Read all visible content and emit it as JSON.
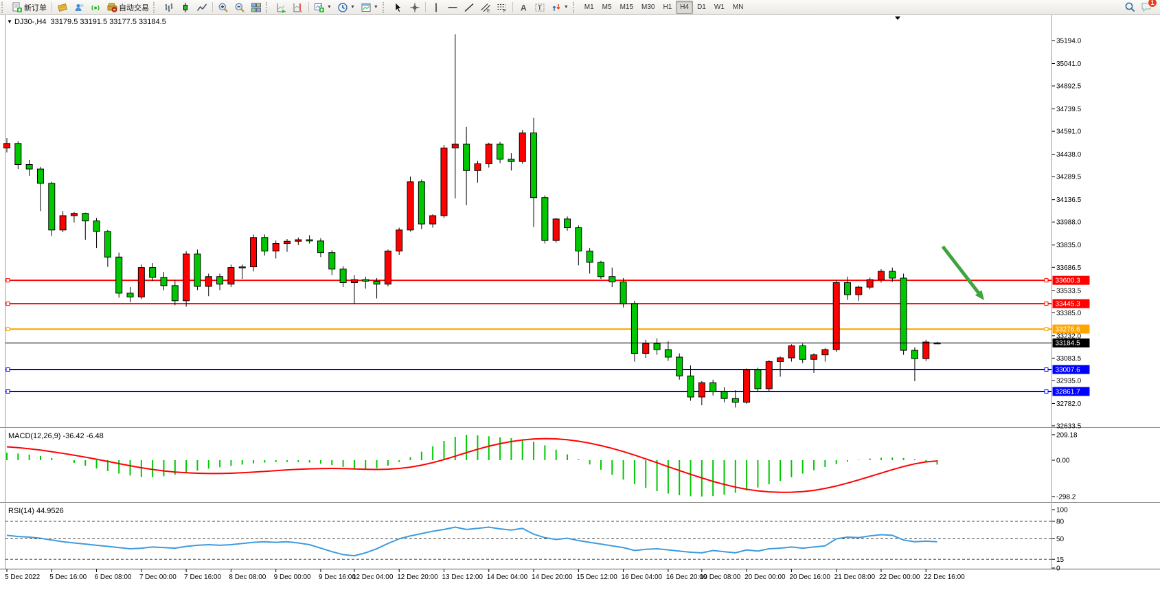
{
  "toolbar": {
    "new_order_label": "新订单",
    "autotrade_label": "自动交易",
    "timeframes": [
      "M1",
      "M5",
      "M15",
      "M30",
      "H1",
      "H4",
      "D1",
      "W1",
      "MN"
    ],
    "active_timeframe": "H4",
    "notification_count": "1"
  },
  "chart": {
    "title_line": "DJ30-,H4  33179.5 33191.5 33177.5 33184.5",
    "symbol": "DJ30-",
    "timeframe": "H4",
    "open": "33179.5",
    "high": "33191.5",
    "low": "33177.5",
    "close": "33184.5",
    "macd_label": "MACD(12,26,9) -36.42 -6.48",
    "rsi_label": "RSI(14) 44.9526"
  },
  "chart_data": [
    {
      "type": "candlestick",
      "symbol": "DJ30-",
      "timeframe": "H4",
      "up_color": "#FF0000",
      "down_color": "#00C800",
      "ylim": [
        32633.5,
        35194.0
      ],
      "y_ticks": [
        35194.0,
        35041.0,
        34892.5,
        34739.5,
        34591.0,
        34438.0,
        34289.5,
        34136.5,
        33988.0,
        33835.0,
        33686.5,
        33533.5,
        33385.0,
        33232.0,
        33083.5,
        32935.0,
        32782.0,
        32633.5
      ],
      "x_labels": [
        "5 Dec 2022",
        "5 Dec 16:00",
        "6 Dec 08:00",
        "7 Dec 00:00",
        "7 Dec 16:00",
        "8 Dec 08:00",
        "9 Dec 00:00",
        "9 Dec 16:00",
        "12 Dec 04:00",
        "12 Dec 20:00",
        "13 Dec 12:00",
        "14 Dec 04:00",
        "14 Dec 20:00",
        "15 Dec 12:00",
        "16 Dec 04:00",
        "16 Dec 20:00",
        "19 Dec 08:00",
        "20 Dec 00:00",
        "20 Dec 16:00",
        "21 Dec 08:00",
        "22 Dec 00:00",
        "22 Dec 16:00"
      ],
      "x_label_bars": [
        0,
        4,
        8,
        12,
        16,
        20,
        24,
        28,
        31,
        35,
        39,
        43,
        47,
        51,
        55,
        59,
        62,
        66,
        70,
        74,
        78,
        82
      ],
      "hlines": [
        {
          "price": 33600.3,
          "label": "33600.3",
          "color": "#FF0000"
        },
        {
          "price": 33445.3,
          "label": "33445.3",
          "color": "#FF0000"
        },
        {
          "price": 33276.6,
          "label": "33276.6",
          "color": "#FFA500"
        },
        {
          "price": 33007.6,
          "label": "33007.6",
          "color": "#0000FF"
        },
        {
          "price": 32861.7,
          "label": "32861.7",
          "color": "#0000FF"
        }
      ],
      "current_price": {
        "price": 33184.5,
        "label": "33184.5",
        "color": "#000000"
      },
      "annotation": {
        "type": "arrow",
        "color": "#3FA33F",
        "from": {
          "bar": 83.5,
          "price": 33825
        },
        "to": {
          "bar": 87.2,
          "price": 33468
        }
      },
      "candles": [
        [
          34480,
          34545,
          34450,
          34510
        ],
        [
          34510,
          34525,
          34340,
          34370
        ],
        [
          34370,
          34400,
          34295,
          34340
        ],
        [
          34340,
          34355,
          34060,
          34245
        ],
        [
          34245,
          34255,
          33895,
          33935
        ],
        [
          33935,
          34060,
          33920,
          34030
        ],
        [
          34030,
          34055,
          33985,
          34045
        ],
        [
          34045,
          34050,
          33870,
          33995
        ],
        [
          33995,
          34015,
          33815,
          33925
        ],
        [
          33925,
          33935,
          33690,
          33755
        ],
        [
          33755,
          33785,
          33485,
          33515
        ],
        [
          33515,
          33555,
          33455,
          33490
        ],
        [
          33490,
          33705,
          33475,
          33685
        ],
        [
          33685,
          33715,
          33595,
          33620
        ],
        [
          33620,
          33655,
          33535,
          33565
        ],
        [
          33565,
          33600,
          33435,
          33465
        ],
        [
          33465,
          33795,
          33425,
          33775
        ],
        [
          33775,
          33805,
          33535,
          33560
        ],
        [
          33560,
          33645,
          33495,
          33625
        ],
        [
          33625,
          33645,
          33535,
          33575
        ],
        [
          33575,
          33705,
          33555,
          33685
        ],
        [
          33685,
          33705,
          33610,
          33690
        ],
        [
          33690,
          33905,
          33660,
          33885
        ],
        [
          33885,
          33905,
          33765,
          33795
        ],
        [
          33795,
          33865,
          33745,
          33845
        ],
        [
          33845,
          33875,
          33790,
          33860
        ],
        [
          33860,
          33885,
          33835,
          33870
        ],
        [
          33870,
          33900,
          33845,
          33862
        ],
        [
          33862,
          33880,
          33755,
          33785
        ],
        [
          33785,
          33800,
          33635,
          33675
        ],
        [
          33675,
          33695,
          33555,
          33585
        ],
        [
          33585,
          33635,
          33445,
          33605
        ],
        [
          33605,
          33625,
          33545,
          33595
        ],
        [
          33595,
          33615,
          33480,
          33575
        ],
        [
          33575,
          33805,
          33560,
          33795
        ],
        [
          33795,
          33950,
          33770,
          33935
        ],
        [
          33935,
          34290,
          33925,
          34255
        ],
        [
          34255,
          34270,
          33940,
          33975
        ],
        [
          33975,
          34040,
          33950,
          34030
        ],
        [
          34030,
          34500,
          34015,
          34480
        ],
        [
          34480,
          35235,
          34145,
          34505
        ],
        [
          34505,
          34620,
          34100,
          34330
        ],
        [
          34330,
          34395,
          34250,
          34375
        ],
        [
          34375,
          34515,
          34350,
          34505
        ],
        [
          34505,
          34520,
          34380,
          34405
        ],
        [
          34405,
          34445,
          34330,
          34390
        ],
        [
          34390,
          34600,
          34375,
          34580
        ],
        [
          34580,
          34680,
          33955,
          34150
        ],
        [
          34150,
          34165,
          33845,
          33865
        ],
        [
          33865,
          34015,
          33850,
          34008
        ],
        [
          34008,
          34025,
          33930,
          33950
        ],
        [
          33950,
          33965,
          33700,
          33795
        ],
        [
          33795,
          33815,
          33645,
          33720
        ],
        [
          33720,
          33730,
          33610,
          33625
        ],
        [
          33625,
          33685,
          33555,
          33590
        ],
        [
          33590,
          33615,
          33420,
          33445
        ],
        [
          33445,
          33465,
          33060,
          33115
        ],
        [
          33115,
          33205,
          33085,
          33180
        ],
        [
          33180,
          33215,
          33105,
          33140
        ],
        [
          33140,
          33195,
          33065,
          33090
        ],
        [
          33090,
          33115,
          32940,
          32965
        ],
        [
          32965,
          33035,
          32800,
          32825
        ],
        [
          32825,
          32930,
          32770,
          32920
        ],
        [
          32920,
          32940,
          32835,
          32860
        ],
        [
          32860,
          32890,
          32790,
          32815
        ],
        [
          32815,
          32870,
          32755,
          32790
        ],
        [
          32790,
          33015,
          32780,
          33005
        ],
        [
          33005,
          33020,
          32860,
          32880
        ],
        [
          32880,
          33070,
          32865,
          33060
        ],
        [
          33060,
          33095,
          32960,
          33085
        ],
        [
          33085,
          33175,
          33060,
          33165
        ],
        [
          33165,
          33180,
          33050,
          33075
        ],
        [
          33075,
          33115,
          32985,
          33105
        ],
        [
          33105,
          33150,
          33060,
          33140
        ],
        [
          33140,
          33600,
          33125,
          33585
        ],
        [
          33585,
          33625,
          33470,
          33505
        ],
        [
          33505,
          33565,
          33465,
          33555
        ],
        [
          33555,
          33620,
          33540,
          33605
        ],
        [
          33605,
          33675,
          33585,
          33660
        ],
        [
          33660,
          33685,
          33590,
          33615
        ],
        [
          33615,
          33645,
          33105,
          33135
        ],
        [
          33135,
          33155,
          32930,
          33080
        ],
        [
          33080,
          33205,
          33065,
          33190
        ],
        [
          33179.5,
          33191.5,
          33177.5,
          33184.5
        ]
      ]
    },
    {
      "type": "bar",
      "name": "MACD",
      "params": "12,26,9",
      "label": "MACD(12,26,9) -36.42 -6.48",
      "current_macd": -36.42,
      "current_signal": -6.48,
      "ylim": [
        -298.2,
        209.18
      ],
      "y_ticks": [
        {
          "v": 209.18,
          "label": "209.18"
        },
        {
          "v": 0,
          "label": "0.00"
        },
        {
          "v": -298.2,
          "label": "-298.2"
        }
      ],
      "histogram_color": "#00C800",
      "signal_color": "#FF0000",
      "histogram": [
        62,
        55,
        46,
        34,
        18,
        2,
        -22,
        -45,
        -68,
        -90,
        -110,
        -126,
        -138,
        -140,
        -132,
        -118,
        -100,
        -85,
        -70,
        -58,
        -46,
        -36,
        -26,
        -20,
        -16,
        -14,
        -16,
        -20,
        -28,
        -40,
        -55,
        -68,
        -74,
        -66,
        -45,
        -15,
        25,
        70,
        115,
        158,
        192,
        209,
        205,
        196,
        188,
        182,
        172,
        152,
        122,
        86,
        48,
        8,
        -35,
        -78,
        -120,
        -160,
        -196,
        -228,
        -254,
        -274,
        -288,
        -296,
        -298,
        -294,
        -284,
        -268,
        -248,
        -224,
        -198,
        -170,
        -140,
        -110,
        -82,
        -56,
        -32,
        -12,
        4,
        14,
        20,
        22,
        18,
        8,
        -16,
        -36.42
      ],
      "signal": [
        110,
        103,
        94,
        83,
        70,
        56,
        41,
        25,
        8,
        -10,
        -28,
        -46,
        -62,
        -76,
        -88,
        -97,
        -103,
        -107,
        -109,
        -109,
        -107,
        -103,
        -98,
        -92,
        -86,
        -80,
        -75,
        -71,
        -69,
        -68,
        -69,
        -72,
        -75,
        -76,
        -74,
        -68,
        -57,
        -41,
        -20,
        5,
        33,
        62,
        90,
        115,
        136,
        153,
        166,
        174,
        177,
        175,
        168,
        156,
        140,
        120,
        97,
        71,
        42,
        11,
        -21,
        -53,
        -85,
        -116,
        -146,
        -174,
        -199,
        -221,
        -239,
        -252,
        -260,
        -264,
        -263,
        -258,
        -248,
        -232,
        -212,
        -188,
        -162,
        -134,
        -106,
        -78,
        -52,
        -30,
        -14,
        -6.48
      ]
    },
    {
      "type": "line",
      "name": "RSI",
      "params": "14",
      "label": "RSI(14) 44.9526",
      "current": 44.9526,
      "levels": [
        80,
        50,
        15
      ],
      "ylim": [
        0,
        100
      ],
      "y_ticks": [
        {
          "v": 100,
          "label": "100"
        },
        {
          "v": 80,
          "label": "80"
        },
        {
          "v": 50,
          "label": "50"
        },
        {
          "v": 15,
          "label": "15"
        },
        {
          "v": 0,
          "label": "0"
        }
      ],
      "color": "#3E9BDE",
      "values": [
        56,
        54,
        53,
        51,
        48,
        45,
        43,
        41,
        39,
        37,
        35,
        33,
        34,
        36,
        35,
        34,
        37,
        39,
        40,
        39,
        40,
        42,
        44,
        45,
        44,
        45,
        43,
        40,
        34,
        28,
        23,
        21,
        26,
        33,
        42,
        50,
        55,
        59,
        63,
        66,
        70,
        66,
        68,
        70,
        67,
        65,
        68,
        58,
        52,
        49,
        51,
        47,
        44,
        41,
        38,
        35,
        30,
        32,
        33,
        31,
        29,
        27,
        26,
        30,
        28,
        26,
        31,
        29,
        33,
        34,
        36,
        34,
        36,
        38,
        50,
        53,
        52,
        55,
        57,
        56,
        48,
        45,
        46,
        44.95
      ]
    }
  ]
}
